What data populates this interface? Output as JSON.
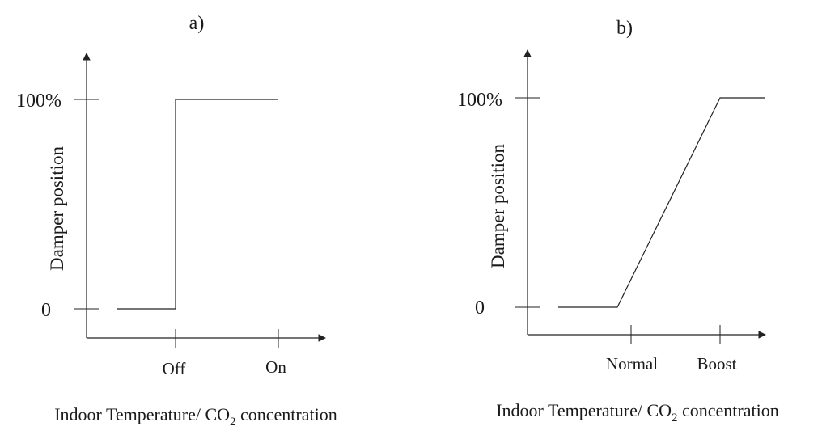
{
  "panels": [
    {
      "letter": "a)",
      "y_tick_top": "100%",
      "y_tick_bottom": "0",
      "ylabel": "Damper position",
      "x_ticks": [
        "Off",
        "On"
      ],
      "xlabel_prefix": "Indoor Temperature/ CO",
      "xlabel_sub": "2",
      "xlabel_suffix": " concentration",
      "control": "on/off step"
    },
    {
      "letter": "b)",
      "y_tick_top": "100%",
      "y_tick_bottom": "0",
      "ylabel": "Damper position",
      "x_ticks": [
        "Normal",
        "Boost"
      ],
      "xlabel_prefix": "Indoor Temperature/ CO",
      "xlabel_sub": "2",
      "xlabel_suffix": " concentration",
      "control": "proportional ramp"
    }
  ]
}
